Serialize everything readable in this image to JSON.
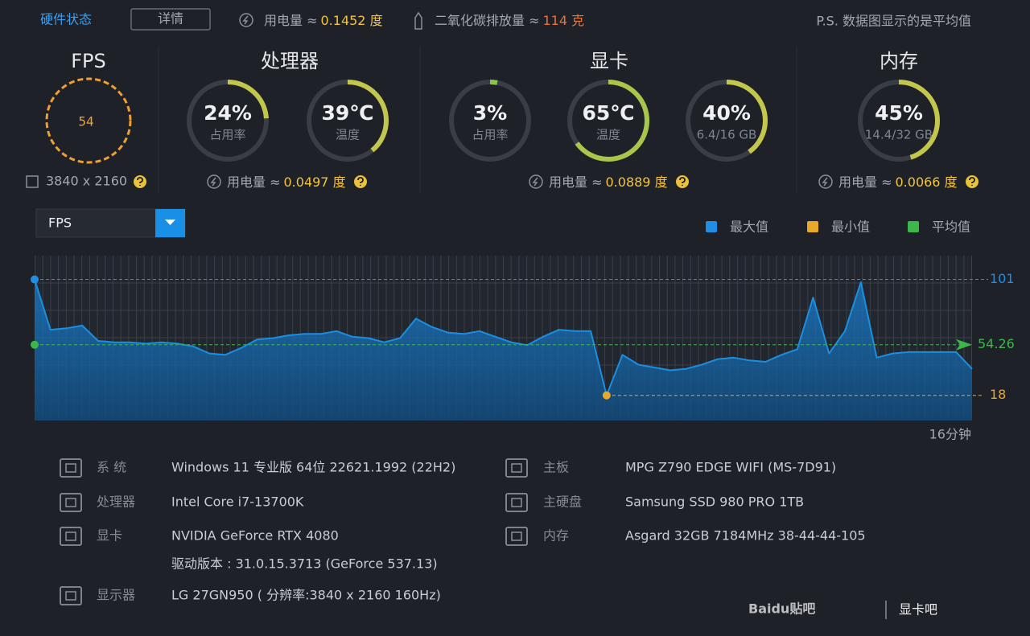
{
  "header": {
    "title": "硬件状态",
    "details_button": "详情",
    "power_label": "用电量 ≈",
    "power_value": "0.1452 度",
    "co2_label": "二氧化碳排放量 ≈",
    "co2_value": "114 克",
    "note": "P.S. 数据图显示的是平均值"
  },
  "fps": {
    "title": "FPS",
    "value": 54,
    "resolution": "3840 x 2160"
  },
  "cpu": {
    "title": "处理器",
    "gauges": [
      {
        "value": 24,
        "label": "24%",
        "caption": "占用率",
        "color": "#c3c64c"
      },
      {
        "value": 39,
        "label": "39℃",
        "caption": "温度",
        "color": "#c3c64c"
      }
    ],
    "power_label": "用电量 ≈",
    "power_value": "0.0497 度"
  },
  "gpu": {
    "title": "显卡",
    "gauges": [
      {
        "value": 3,
        "label": "3%",
        "caption": "占用率",
        "color": "#8cc44a"
      },
      {
        "value": 65,
        "label": "65℃",
        "caption": "温度",
        "color": "#a9c64a"
      },
      {
        "value": 40,
        "label": "40%",
        "caption": "6.4/16 GB",
        "color": "#c3c64c"
      }
    ],
    "power_label": "用电量 ≈",
    "power_value": "0.0889 度"
  },
  "memory": {
    "title": "内存",
    "gauges": [
      {
        "value": 45,
        "label": "45%",
        "caption": "14.4/32 GB",
        "color": "#c3c64c"
      }
    ],
    "power_label": "用电量 ≈",
    "power_value": "0.0066 度"
  },
  "fps_chart": {
    "type": "line",
    "selector": "FPS",
    "legend": [
      {
        "name": "最大值",
        "color": "#1f8fe6"
      },
      {
        "name": "最小值",
        "color": "#e8a92a"
      },
      {
        "name": "平均值",
        "color": "#3cb84a"
      }
    ],
    "max": 101,
    "average": 54.26,
    "min": 18,
    "ylim": [
      0,
      118
    ],
    "color": "#1a8fe0",
    "values": [
      101,
      65,
      66,
      68,
      57,
      56,
      56,
      55,
      56,
      55,
      53,
      48,
      47,
      52,
      58,
      59,
      61,
      62,
      62,
      64,
      60,
      59,
      56,
      59,
      73,
      67,
      63,
      62,
      64,
      60,
      56,
      54,
      60,
      65,
      64,
      64,
      18,
      47,
      40,
      38,
      36,
      37,
      40,
      44,
      45,
      43,
      42,
      47,
      51,
      88,
      48,
      64,
      99,
      45,
      48,
      49,
      49,
      49,
      49,
      37
    ],
    "duration": "16分钟"
  },
  "info": {
    "left": [
      {
        "label": "系 统",
        "value": "Windows 11 专业版 64位 22621.1992 (22H2)"
      },
      {
        "label": "处理器",
        "value": "Intel Core i7-13700K"
      },
      {
        "label": "显卡",
        "value": "NVIDIA GeForce RTX 4080",
        "extra": "驱动版本 : 31.0.15.3713 (GeForce 537.13)"
      },
      {
        "label": "显示器",
        "value": "LG 27GN950 ( 分辨率:3840 x 2160 160Hz)"
      }
    ],
    "right": [
      {
        "label": "主板",
        "value": "MPG Z790 EDGE WIFI (MS-7D91)"
      },
      {
        "label": "主硬盘",
        "value": "Samsung SSD 980 PRO 1TB"
      },
      {
        "label": "内存",
        "value": "Asgard 32GB 7184MHz 38-44-44-105"
      }
    ]
  },
  "watermark": {
    "brand": "Baidu贴吧",
    "forum": "显卡吧"
  }
}
